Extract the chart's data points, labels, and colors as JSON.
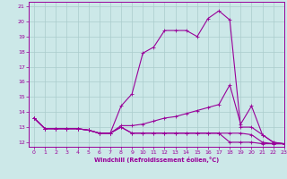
{
  "xlabel": "Windchill (Refroidissement éolien,°C)",
  "xlim": [
    -0.5,
    23
  ],
  "ylim": [
    11.7,
    21.3
  ],
  "xticks": [
    0,
    1,
    2,
    3,
    4,
    5,
    6,
    7,
    8,
    9,
    10,
    11,
    12,
    13,
    14,
    15,
    16,
    17,
    18,
    19,
    20,
    21,
    22,
    23
  ],
  "yticks": [
    12,
    13,
    14,
    15,
    16,
    17,
    18,
    19,
    20,
    21
  ],
  "background_color": "#cce8e8",
  "grid_color": "#aacccc",
  "line_color": "#990099",
  "lines": [
    {
      "x": [
        0,
        1,
        2,
        3,
        4,
        5,
        6,
        7,
        8,
        9,
        10,
        11,
        12,
        13,
        14,
        15,
        16,
        17,
        18,
        19,
        20,
        21,
        22,
        23
      ],
      "y": [
        13.6,
        12.9,
        12.9,
        12.9,
        12.9,
        12.8,
        12.6,
        12.6,
        14.4,
        15.2,
        17.9,
        18.3,
        19.4,
        19.4,
        19.4,
        19.0,
        20.2,
        20.7,
        20.1,
        13.0,
        13.0,
        12.5,
        12.0,
        11.9
      ]
    },
    {
      "x": [
        0,
        1,
        2,
        3,
        4,
        5,
        6,
        7,
        8,
        9,
        10,
        11,
        12,
        13,
        14,
        15,
        16,
        17,
        18,
        19,
        20,
        21,
        22,
        23
      ],
      "y": [
        13.6,
        12.9,
        12.9,
        12.9,
        12.9,
        12.8,
        12.6,
        12.6,
        13.1,
        13.1,
        13.2,
        13.4,
        13.6,
        13.7,
        13.9,
        14.1,
        14.3,
        14.5,
        15.8,
        13.2,
        14.4,
        12.5,
        12.0,
        11.9
      ]
    },
    {
      "x": [
        0,
        1,
        2,
        3,
        4,
        5,
        6,
        7,
        8,
        9,
        10,
        11,
        12,
        13,
        14,
        15,
        16,
        17,
        18,
        19,
        20,
        21,
        22,
        23
      ],
      "y": [
        13.6,
        12.9,
        12.9,
        12.9,
        12.9,
        12.8,
        12.6,
        12.6,
        13.0,
        12.6,
        12.6,
        12.6,
        12.6,
        12.6,
        12.6,
        12.6,
        12.6,
        12.6,
        12.6,
        12.6,
        12.5,
        12.0,
        11.9,
        11.9
      ]
    },
    {
      "x": [
        0,
        1,
        2,
        3,
        4,
        5,
        6,
        7,
        8,
        9,
        10,
        11,
        12,
        13,
        14,
        15,
        16,
        17,
        18,
        19,
        20,
        21,
        22,
        23
      ],
      "y": [
        13.6,
        12.9,
        12.9,
        12.9,
        12.9,
        12.8,
        12.6,
        12.6,
        13.0,
        12.6,
        12.6,
        12.6,
        12.6,
        12.6,
        12.6,
        12.6,
        12.6,
        12.6,
        12.0,
        12.0,
        12.0,
        11.9,
        11.9,
        11.9
      ]
    }
  ]
}
